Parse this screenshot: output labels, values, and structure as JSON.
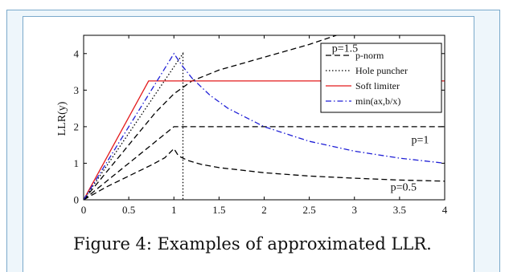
{
  "caption": "Figure 4: Examples of approximated LLR.",
  "chart_data": {
    "type": "line",
    "title": "",
    "xlabel": "",
    "ylabel": "LLR(y)",
    "xlim": [
      0,
      4
    ],
    "ylim": [
      0,
      4.5
    ],
    "xticks": [
      "0",
      "0.5",
      "1",
      "1.5",
      "2",
      "2.5",
      "3",
      "3.5",
      "4"
    ],
    "yticks": [
      "0",
      "1",
      "2",
      "3",
      "4"
    ],
    "grid": false,
    "legend_position": "top-right",
    "legend": [
      {
        "label": "p-norm",
        "color": "#000000",
        "dash": "dashed"
      },
      {
        "label": "Hole puncher",
        "color": "#000000",
        "dash": "dotted"
      },
      {
        "label": "Soft limiter",
        "color": "#e31a1c",
        "dash": "solid"
      },
      {
        "label": "min(ax,b/x)",
        "color": "#1f1fd6",
        "dash": "dashdot"
      }
    ],
    "series": [
      {
        "kind": "p-norm",
        "annotation": "p=1.5",
        "points": [
          [
            0,
            0
          ],
          [
            0.2,
            0.6
          ],
          [
            0.4,
            1.2
          ],
          [
            0.6,
            1.8
          ],
          [
            0.8,
            2.4
          ],
          [
            1.0,
            2.9
          ],
          [
            1.2,
            3.25
          ],
          [
            1.5,
            3.55
          ],
          [
            2.0,
            3.9
          ],
          [
            2.5,
            4.25
          ],
          [
            2.8,
            4.5
          ]
        ]
      },
      {
        "kind": "p-norm",
        "annotation": "p=1",
        "points": [
          [
            0,
            0
          ],
          [
            1.0,
            2.0
          ],
          [
            4.0,
            2.0
          ]
        ]
      },
      {
        "kind": "p-norm",
        "annotation": "p=0.5",
        "points": [
          [
            0,
            0
          ],
          [
            0.25,
            0.35
          ],
          [
            0.5,
            0.65
          ],
          [
            0.75,
            0.95
          ],
          [
            0.9,
            1.15
          ],
          [
            1.0,
            1.4
          ],
          [
            1.05,
            1.2
          ],
          [
            1.15,
            1.08
          ],
          [
            1.3,
            0.97
          ],
          [
            1.5,
            0.88
          ],
          [
            2.0,
            0.74
          ],
          [
            2.5,
            0.65
          ],
          [
            3.0,
            0.59
          ],
          [
            3.5,
            0.54
          ],
          [
            4.0,
            0.51
          ]
        ]
      },
      {
        "kind": "Hole puncher",
        "annotation": "",
        "points": [
          [
            0,
            0
          ],
          [
            1.1,
            4.0
          ],
          [
            1.1,
            0
          ]
        ]
      },
      {
        "kind": "Soft limiter",
        "annotation": "",
        "points": [
          [
            0,
            0
          ],
          [
            0.72,
            3.25
          ],
          [
            4.0,
            3.25
          ]
        ]
      },
      {
        "kind": "min(ax,b/x)",
        "annotation": "",
        "points": [
          [
            0,
            0
          ],
          [
            1.0,
            4.0
          ],
          [
            1.1,
            3.64
          ],
          [
            1.2,
            3.33
          ],
          [
            1.4,
            2.86
          ],
          [
            1.6,
            2.5
          ],
          [
            2.0,
            2.0
          ],
          [
            2.5,
            1.6
          ],
          [
            3.0,
            1.33
          ],
          [
            3.5,
            1.14
          ],
          [
            4.0,
            1.0
          ]
        ]
      }
    ]
  }
}
